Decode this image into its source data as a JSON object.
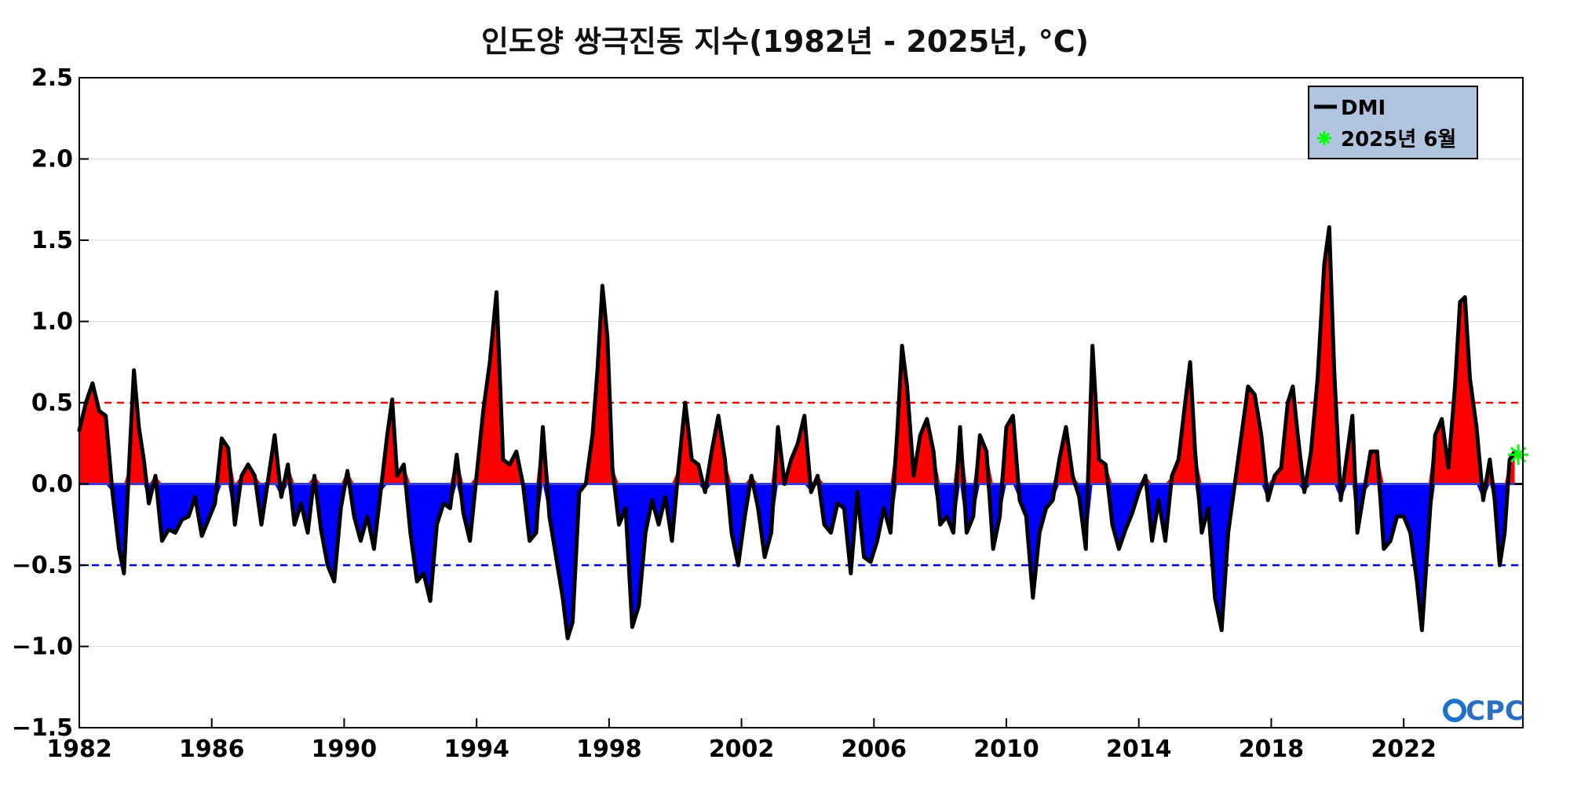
{
  "chart_data": {
    "type": "area",
    "title": "인도양 쌍극진동 지수(1982년 - 2025년, °C)",
    "xlabel": "",
    "ylabel": "",
    "xlim": [
      1982.0,
      2025.6
    ],
    "ylim": [
      -1.5,
      2.5
    ],
    "x_ticks": [
      1982,
      1986,
      1990,
      1994,
      1998,
      2002,
      2006,
      2010,
      2014,
      2018,
      2022
    ],
    "y_ticks": [
      2.5,
      2.0,
      1.5,
      1.0,
      0.5,
      0.0,
      -0.5,
      -1.0,
      -1.5
    ],
    "x_tick_labels": [
      "1982",
      "1986",
      "1990",
      "1994",
      "1998",
      "2002",
      "2006",
      "2010",
      "2014",
      "2018",
      "2022"
    ],
    "y_tick_labels": [
      "2.5",
      "2.0",
      "1.5",
      "1.0",
      "0.5",
      "0.0",
      "−0.5",
      "−1.0",
      "−1.5"
    ],
    "thresholds": [
      {
        "value": 0.5,
        "color": "#ff0000",
        "style": "dashed"
      },
      {
        "value": -0.5,
        "color": "#0000ff",
        "style": "dashed"
      }
    ],
    "grid": true,
    "legend_position": "top-right",
    "legend": {
      "line_label": "DMI",
      "marker_label": "2025년 6월"
    },
    "highlight_point": {
      "x": 2025.46,
      "y": 0.18
    },
    "positive_fill": "#ff0000",
    "negative_fill": "#0000ff",
    "series": [
      {
        "name": "DMI",
        "color": "#000000",
        "points": [
          [
            1982.0,
            0.33
          ],
          [
            1982.2,
            0.5
          ],
          [
            1982.4,
            0.62
          ],
          [
            1982.6,
            0.45
          ],
          [
            1982.8,
            0.42
          ],
          [
            1983.0,
            -0.05
          ],
          [
            1983.2,
            -0.4
          ],
          [
            1983.35,
            -0.55
          ],
          [
            1983.5,
            0.1
          ],
          [
            1983.65,
            0.7
          ],
          [
            1983.8,
            0.35
          ],
          [
            1983.95,
            0.15
          ],
          [
            1984.1,
            -0.12
          ],
          [
            1984.3,
            0.05
          ],
          [
            1984.5,
            -0.35
          ],
          [
            1984.7,
            -0.28
          ],
          [
            1984.9,
            -0.3
          ],
          [
            1985.1,
            -0.22
          ],
          [
            1985.3,
            -0.2
          ],
          [
            1985.5,
            -0.08
          ],
          [
            1985.7,
            -0.32
          ],
          [
            1985.9,
            -0.22
          ],
          [
            1986.1,
            -0.12
          ],
          [
            1986.3,
            0.28
          ],
          [
            1986.5,
            0.22
          ],
          [
            1986.7,
            -0.25
          ],
          [
            1986.9,
            0.05
          ],
          [
            1987.1,
            0.12
          ],
          [
            1987.3,
            0.05
          ],
          [
            1987.5,
            -0.25
          ],
          [
            1987.7,
            0.02
          ],
          [
            1987.9,
            0.3
          ],
          [
            1988.1,
            -0.08
          ],
          [
            1988.3,
            0.12
          ],
          [
            1988.5,
            -0.25
          ],
          [
            1988.7,
            -0.12
          ],
          [
            1988.9,
            -0.3
          ],
          [
            1989.1,
            0.05
          ],
          [
            1989.3,
            -0.28
          ],
          [
            1989.5,
            -0.5
          ],
          [
            1989.7,
            -0.6
          ],
          [
            1989.9,
            -0.15
          ],
          [
            1990.1,
            0.08
          ],
          [
            1990.3,
            -0.2
          ],
          [
            1990.5,
            -0.35
          ],
          [
            1990.7,
            -0.2
          ],
          [
            1990.9,
            -0.4
          ],
          [
            1991.1,
            -0.05
          ],
          [
            1991.3,
            0.3
          ],
          [
            1991.45,
            0.52
          ],
          [
            1991.6,
            0.05
          ],
          [
            1991.8,
            0.12
          ],
          [
            1992.0,
            -0.3
          ],
          [
            1992.2,
            -0.6
          ],
          [
            1992.4,
            -0.55
          ],
          [
            1992.6,
            -0.72
          ],
          [
            1992.8,
            -0.25
          ],
          [
            1993.0,
            -0.12
          ],
          [
            1993.2,
            -0.15
          ],
          [
            1993.4,
            0.18
          ],
          [
            1993.6,
            -0.18
          ],
          [
            1993.8,
            -0.35
          ],
          [
            1994.0,
            0.05
          ],
          [
            1994.2,
            0.45
          ],
          [
            1994.4,
            0.75
          ],
          [
            1994.6,
            1.18
          ],
          [
            1994.8,
            0.15
          ],
          [
            1995.0,
            0.12
          ],
          [
            1995.2,
            0.2
          ],
          [
            1995.4,
            0.0
          ],
          [
            1995.6,
            -0.35
          ],
          [
            1995.8,
            -0.3
          ],
          [
            1996.0,
            0.35
          ],
          [
            1996.2,
            -0.2
          ],
          [
            1996.4,
            -0.45
          ],
          [
            1996.6,
            -0.7
          ],
          [
            1996.75,
            -0.95
          ],
          [
            1996.9,
            -0.85
          ],
          [
            1997.1,
            -0.05
          ],
          [
            1997.3,
            0.0
          ],
          [
            1997.5,
            0.3
          ],
          [
            1997.65,
            0.7
          ],
          [
            1997.8,
            1.22
          ],
          [
            1997.95,
            0.9
          ],
          [
            1998.1,
            0.1
          ],
          [
            1998.3,
            -0.25
          ],
          [
            1998.5,
            -0.15
          ],
          [
            1998.7,
            -0.88
          ],
          [
            1998.9,
            -0.75
          ],
          [
            1999.1,
            -0.3
          ],
          [
            1999.3,
            -0.1
          ],
          [
            1999.5,
            -0.25
          ],
          [
            1999.7,
            -0.08
          ],
          [
            1999.9,
            -0.35
          ],
          [
            2000.1,
            0.1
          ],
          [
            2000.3,
            0.5
          ],
          [
            2000.5,
            0.15
          ],
          [
            2000.7,
            0.12
          ],
          [
            2000.9,
            -0.05
          ],
          [
            2001.1,
            0.2
          ],
          [
            2001.3,
            0.42
          ],
          [
            2001.5,
            0.15
          ],
          [
            2001.7,
            -0.3
          ],
          [
            2001.9,
            -0.5
          ],
          [
            2002.1,
            -0.2
          ],
          [
            2002.3,
            0.05
          ],
          [
            2002.5,
            -0.15
          ],
          [
            2002.7,
            -0.45
          ],
          [
            2002.9,
            -0.3
          ],
          [
            2003.1,
            0.35
          ],
          [
            2003.3,
            0.0
          ],
          [
            2003.5,
            0.15
          ],
          [
            2003.7,
            0.25
          ],
          [
            2003.9,
            0.42
          ],
          [
            2004.1,
            -0.05
          ],
          [
            2004.3,
            0.05
          ],
          [
            2004.5,
            -0.25
          ],
          [
            2004.7,
            -0.3
          ],
          [
            2004.9,
            -0.12
          ],
          [
            2005.1,
            -0.15
          ],
          [
            2005.3,
            -0.55
          ],
          [
            2005.5,
            -0.05
          ],
          [
            2005.7,
            -0.45
          ],
          [
            2005.9,
            -0.48
          ],
          [
            2006.1,
            -0.35
          ],
          [
            2006.3,
            -0.15
          ],
          [
            2006.5,
            -0.3
          ],
          [
            2006.7,
            0.3
          ],
          [
            2006.85,
            0.85
          ],
          [
            2007.0,
            0.6
          ],
          [
            2007.2,
            0.05
          ],
          [
            2007.4,
            0.3
          ],
          [
            2007.6,
            0.4
          ],
          [
            2007.8,
            0.2
          ],
          [
            2008.0,
            -0.25
          ],
          [
            2008.2,
            -0.2
          ],
          [
            2008.4,
            -0.3
          ],
          [
            2008.6,
            0.35
          ],
          [
            2008.8,
            -0.3
          ],
          [
            2009.0,
            -0.2
          ],
          [
            2009.2,
            0.3
          ],
          [
            2009.4,
            0.2
          ],
          [
            2009.6,
            -0.4
          ],
          [
            2009.8,
            -0.2
          ],
          [
            2010.0,
            0.35
          ],
          [
            2010.2,
            0.42
          ],
          [
            2010.4,
            -0.1
          ],
          [
            2010.6,
            -0.2
          ],
          [
            2010.8,
            -0.7
          ],
          [
            2011.0,
            -0.3
          ],
          [
            2011.2,
            -0.15
          ],
          [
            2011.4,
            -0.1
          ],
          [
            2011.6,
            0.15
          ],
          [
            2011.8,
            0.35
          ],
          [
            2012.0,
            0.05
          ],
          [
            2012.2,
            -0.08
          ],
          [
            2012.4,
            -0.4
          ],
          [
            2012.6,
            0.85
          ],
          [
            2012.8,
            0.15
          ],
          [
            2013.0,
            0.12
          ],
          [
            2013.2,
            -0.25
          ],
          [
            2013.4,
            -0.4
          ],
          [
            2013.6,
            -0.28
          ],
          [
            2013.8,
            -0.18
          ],
          [
            2014.0,
            -0.05
          ],
          [
            2014.2,
            0.05
          ],
          [
            2014.4,
            -0.35
          ],
          [
            2014.6,
            -0.1
          ],
          [
            2014.8,
            -0.35
          ],
          [
            2015.0,
            0.05
          ],
          [
            2015.2,
            0.15
          ],
          [
            2015.4,
            0.5
          ],
          [
            2015.55,
            0.75
          ],
          [
            2015.7,
            0.2
          ],
          [
            2015.9,
            -0.3
          ],
          [
            2016.1,
            -0.15
          ],
          [
            2016.3,
            -0.7
          ],
          [
            2016.5,
            -0.9
          ],
          [
            2016.7,
            -0.3
          ],
          [
            2016.9,
            0.0
          ],
          [
            2017.1,
            0.3
          ],
          [
            2017.3,
            0.6
          ],
          [
            2017.5,
            0.55
          ],
          [
            2017.7,
            0.3
          ],
          [
            2017.9,
            -0.1
          ],
          [
            2018.1,
            0.05
          ],
          [
            2018.3,
            0.1
          ],
          [
            2018.5,
            0.5
          ],
          [
            2018.65,
            0.6
          ],
          [
            2018.8,
            0.3
          ],
          [
            2019.0,
            -0.05
          ],
          [
            2019.2,
            0.2
          ],
          [
            2019.4,
            0.65
          ],
          [
            2019.6,
            1.35
          ],
          [
            2019.75,
            1.58
          ],
          [
            2019.9,
            0.7
          ],
          [
            2020.1,
            -0.1
          ],
          [
            2020.3,
            0.2
          ],
          [
            2020.45,
            0.42
          ],
          [
            2020.6,
            -0.3
          ],
          [
            2020.8,
            -0.05
          ],
          [
            2021.0,
            0.2
          ],
          [
            2021.2,
            0.2
          ],
          [
            2021.4,
            -0.4
          ],
          [
            2021.6,
            -0.35
          ],
          [
            2021.8,
            -0.2
          ],
          [
            2022.0,
            -0.2
          ],
          [
            2022.2,
            -0.3
          ],
          [
            2022.4,
            -0.6
          ],
          [
            2022.55,
            -0.9
          ],
          [
            2022.75,
            -0.3
          ],
          [
            2022.95,
            0.3
          ],
          [
            2023.15,
            0.4
          ],
          [
            2023.35,
            0.1
          ],
          [
            2023.55,
            0.6
          ],
          [
            2023.7,
            1.12
          ],
          [
            2023.85,
            1.15
          ],
          [
            2024.0,
            0.65
          ],
          [
            2024.2,
            0.35
          ],
          [
            2024.4,
            -0.1
          ],
          [
            2024.6,
            0.15
          ],
          [
            2024.75,
            -0.1
          ],
          [
            2024.9,
            -0.5
          ],
          [
            2025.05,
            -0.3
          ],
          [
            2025.2,
            0.15
          ],
          [
            2025.35,
            0.2
          ]
        ]
      }
    ]
  },
  "logo": {
    "text": "CPC",
    "circle_color": "#1a73c9",
    "text_color": "#2a6fc2"
  }
}
